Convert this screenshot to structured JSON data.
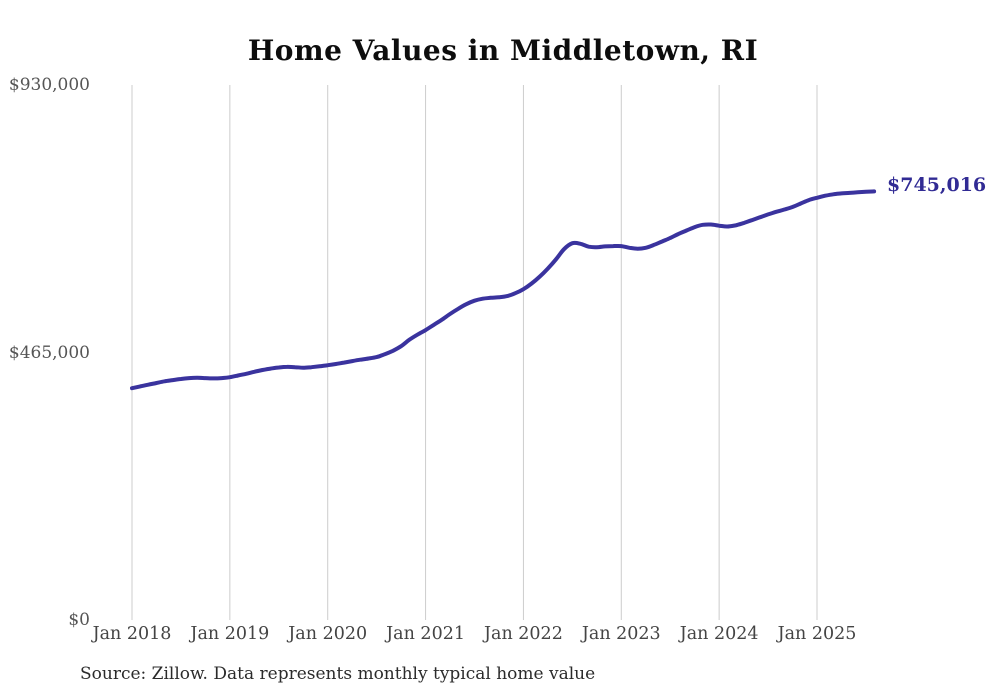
{
  "title": "Home Values in Middletown, RI",
  "end_label": "$745,016",
  "source": "Source: Zillow. Data represents monthly typical home value",
  "colors": {
    "line": "#3a339e",
    "grid": "#cccccc",
    "title": "#0d0d0d",
    "y_axis_label": "#555555",
    "x_axis_label": "#444444",
    "end_label": "#312b94",
    "source": "#2b2b2b",
    "background": "#ffffff"
  },
  "chart_data": {
    "type": "line",
    "title": "Home Values in Middletown, RI",
    "xlabel": "",
    "ylabel": "",
    "x_unit": "month",
    "x_first": "Jan 2018",
    "x_last": "Aug 2025",
    "ylim": [
      0,
      930000
    ],
    "y_ticks": [
      0,
      465000,
      930000
    ],
    "y_tick_labels": [
      "$0",
      "$465,000",
      "$930,000"
    ],
    "x_tick_labels": [
      "Jan 2018",
      "Jan 2019",
      "Jan 2020",
      "Jan 2021",
      "Jan 2022",
      "Jan 2023",
      "Jan 2024",
      "Jan 2025"
    ],
    "x_tick_month_index": [
      0,
      12,
      24,
      36,
      48,
      60,
      72,
      84
    ],
    "grid": "vertical-only",
    "legend": "none",
    "final_value": 745016,
    "series": [
      {
        "name": "Monthly typical home value",
        "values": [
          403000,
          406000,
          409000,
          412000,
          415000,
          417000,
          419000,
          420500,
          421000,
          420500,
          420000,
          420500,
          422000,
          425000,
          428000,
          431500,
          434500,
          437000,
          439000,
          440000,
          439500,
          438500,
          439500,
          441000,
          443000,
          445000,
          447500,
          450000,
          452500,
          454500,
          457000,
          462000,
          468000,
          476000,
          487000,
          496000,
          504000,
          513000,
          522000,
          532000,
          541000,
          549000,
          555000,
          558500,
          560000,
          561000,
          563000,
          568000,
          575000,
          585000,
          597000,
          611000,
          627000,
          645000,
          655000,
          654000,
          649000,
          648000,
          649500,
          650000,
          650000,
          647000,
          645500,
          647000,
          652000,
          658000,
          664000,
          671000,
          677000,
          683000,
          687000,
          687500,
          685500,
          684000,
          686000,
          690000,
          695000,
          700000,
          705000,
          709500,
          713500,
          718000,
          724000,
          730000,
          734000,
          737500,
          740000,
          741500,
          742500,
          743500,
          744500,
          745016
        ]
      }
    ]
  }
}
